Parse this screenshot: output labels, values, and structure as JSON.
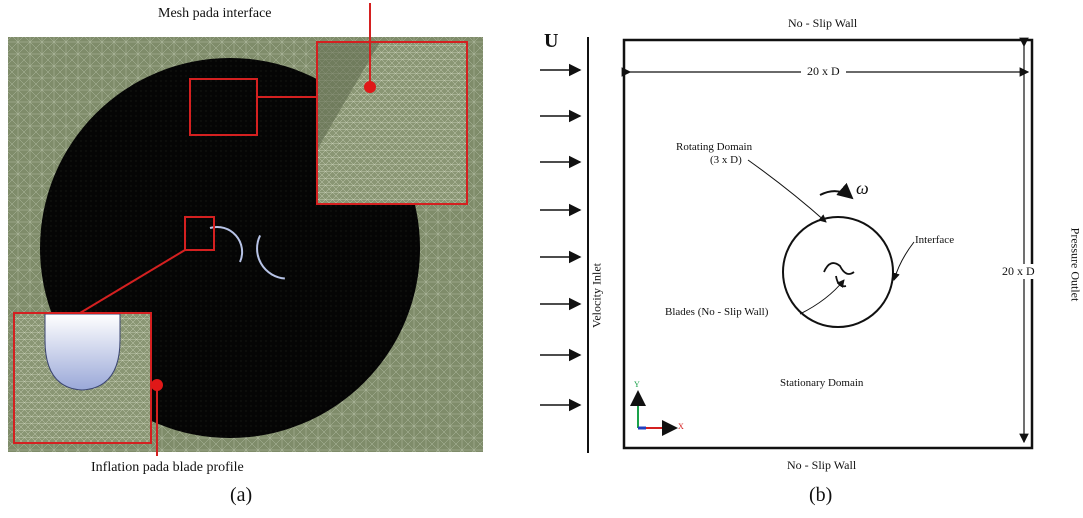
{
  "panel_a": {
    "caption": "(a)",
    "callout_top": "Mesh pada interface",
    "callout_bottom": "Inflation pada blade profile"
  },
  "panel_b": {
    "caption": "(b)",
    "inlet_symbol": "U",
    "top_wall": "No - Slip Wall",
    "bottom_wall": "No - Slip Wall",
    "width_dim": "20 x D",
    "height_dim": "20 x D",
    "rotating_domain": "Rotating Domain",
    "rotating_size": "(3 x D)",
    "omega": "ω",
    "interface": "Interface",
    "blades": "Blades (No - Slip Wall)",
    "stationary": "Stationary Domain",
    "velocity_inlet": "Velocity Inlet",
    "pressure_outlet": "Pressure Outlet",
    "axis_y": "Y",
    "axis_x": "X"
  },
  "colors": {
    "mesh_bg": "#7f8c6a",
    "mesh_dark": "#0a0a0a",
    "highlight": "#d42020",
    "blade": "#b7c3e6"
  }
}
